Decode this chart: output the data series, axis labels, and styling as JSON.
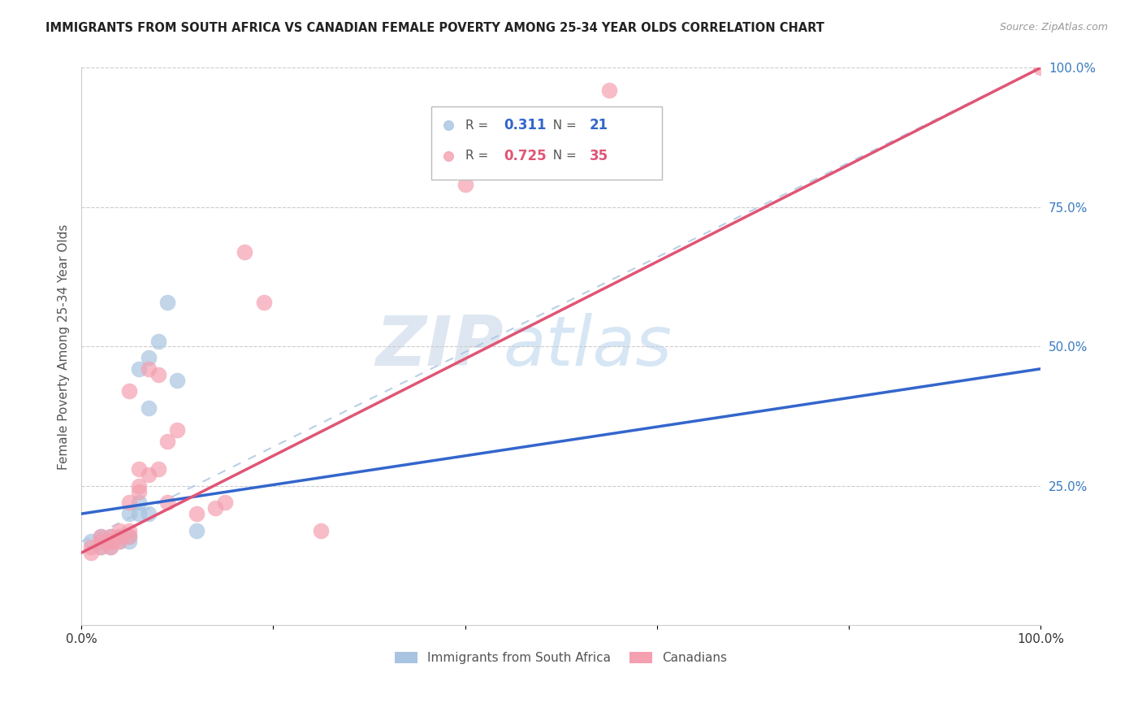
{
  "title": "IMMIGRANTS FROM SOUTH AFRICA VS CANADIAN FEMALE POVERTY AMONG 25-34 YEAR OLDS CORRELATION CHART",
  "source": "Source: ZipAtlas.com",
  "ylabel": "Female Poverty Among 25-34 Year Olds",
  "right_yticks": [
    "100.0%",
    "75.0%",
    "50.0%",
    "25.0%"
  ],
  "right_ytick_vals": [
    1.0,
    0.75,
    0.5,
    0.25
  ],
  "legend_blue_r": "0.311",
  "legend_blue_n": "21",
  "legend_pink_r": "0.725",
  "legend_pink_n": "35",
  "legend_label_blue": "Immigrants from South Africa",
  "legend_label_pink": "Canadians",
  "blue_color": "#a8c4e0",
  "pink_color": "#f4a0b0",
  "trendline_blue": "#3366cc",
  "trendline_pink": "#e05575",
  "trendline_dashed_color": "#a8c4e0",
  "watermark_zip": "ZIP",
  "watermark_atlas": "atlas",
  "xlim": [
    0,
    0.1
  ],
  "ylim": [
    0,
    1.0
  ],
  "xtick_positions": [
    0.0,
    0.02,
    0.04,
    0.06,
    0.08,
    0.1
  ],
  "xtick_labels": [
    "0.0%",
    "",
    "",
    "",
    "",
    "100.0%"
  ],
  "blue_x": [
    0.001,
    0.002,
    0.002,
    0.003,
    0.003,
    0.003,
    0.004,
    0.004,
    0.005,
    0.005,
    0.005,
    0.006,
    0.006,
    0.006,
    0.007,
    0.007,
    0.007,
    0.008,
    0.009,
    0.01,
    0.012
  ],
  "blue_y": [
    0.15,
    0.14,
    0.16,
    0.14,
    0.15,
    0.16,
    0.15,
    0.16,
    0.15,
    0.16,
    0.2,
    0.22,
    0.2,
    0.46,
    0.2,
    0.39,
    0.48,
    0.51,
    0.58,
    0.44,
    0.17
  ],
  "pink_x": [
    0.001,
    0.001,
    0.002,
    0.002,
    0.002,
    0.003,
    0.003,
    0.003,
    0.003,
    0.004,
    0.004,
    0.004,
    0.005,
    0.005,
    0.005,
    0.005,
    0.006,
    0.006,
    0.006,
    0.007,
    0.007,
    0.008,
    0.008,
    0.009,
    0.009,
    0.01,
    0.012,
    0.014,
    0.015,
    0.017,
    0.019,
    0.025,
    0.04,
    0.055,
    0.1
  ],
  "pink_y": [
    0.13,
    0.14,
    0.14,
    0.15,
    0.16,
    0.14,
    0.15,
    0.15,
    0.16,
    0.15,
    0.16,
    0.17,
    0.16,
    0.17,
    0.22,
    0.42,
    0.24,
    0.25,
    0.28,
    0.27,
    0.46,
    0.28,
    0.45,
    0.22,
    0.33,
    0.35,
    0.2,
    0.21,
    0.22,
    0.67,
    0.58,
    0.17,
    0.79,
    0.96,
    1.0
  ],
  "blue_trend_x": [
    0.0,
    0.1
  ],
  "blue_trend_y": [
    0.2,
    0.46
  ],
  "pink_trend_x": [
    0.0,
    0.1
  ],
  "pink_trend_y": [
    0.13,
    1.0
  ],
  "dashed_trend_x": [
    0.0,
    0.1
  ],
  "dashed_trend_y": [
    0.15,
    1.0
  ]
}
